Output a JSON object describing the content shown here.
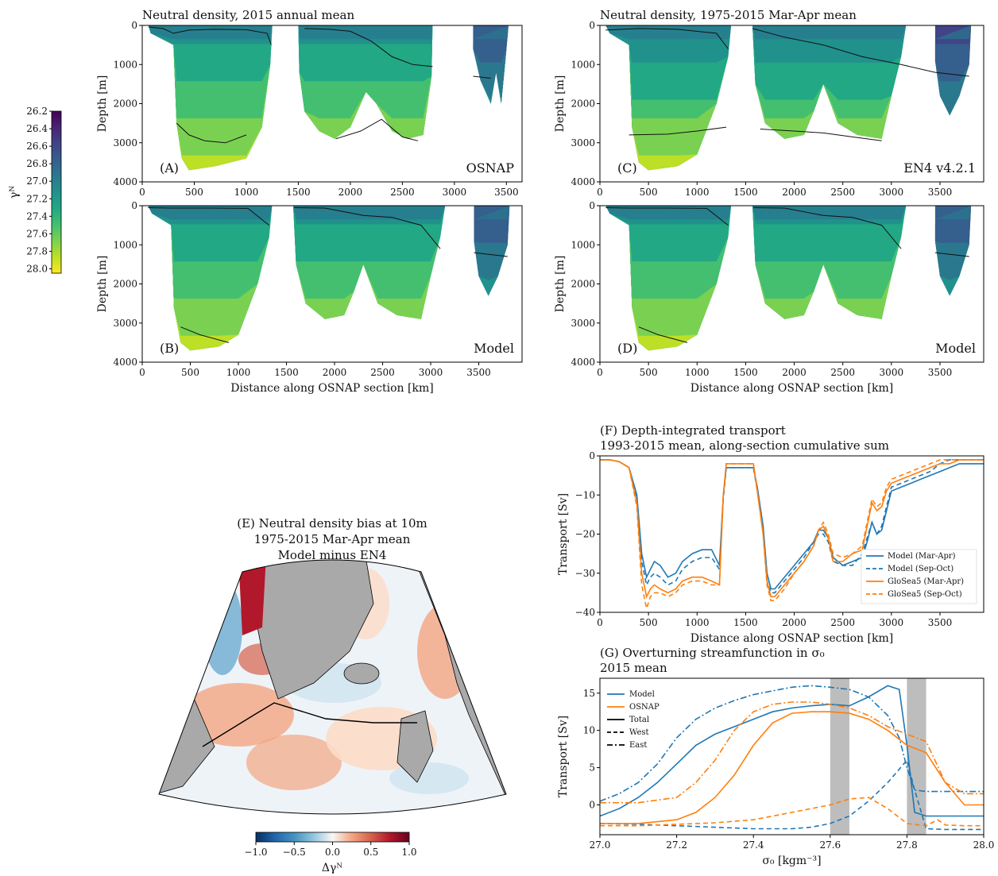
{
  "colors": {
    "model": "#1f77b4",
    "gloseas5": "#ff7f0e",
    "osnap_g": "#ff7f0e",
    "land": "#a9a9a9",
    "shade": "#bdbdbd"
  },
  "colorbar_density": {
    "label": "γᴺ",
    "ticks": [
      "26.2",
      "26.4",
      "26.6",
      "26.8",
      "27.0",
      "27.2",
      "27.4",
      "27.6",
      "27.8",
      "28.0"
    ],
    "range": [
      26.2,
      28.05
    ],
    "colormap": "viridis-reversed"
  },
  "panels": {
    "A": {
      "title": "Neutral density, 2015 annual mean",
      "label": "(A)",
      "source": "OSNAP"
    },
    "B": {
      "label": "(B)",
      "source": "Model"
    },
    "C": {
      "title": "Neutral density, 1975-2015 Mar-Apr mean",
      "label": "(C)",
      "source": "EN4 v4.2.1"
    },
    "D": {
      "label": "(D)",
      "source": "Model"
    },
    "E": {
      "title1": "(E) Neutral density bias at 10m",
      "title2": "1975-2015 Mar-Apr mean",
      "title3": "Model minus EN4",
      "cbar_label": "Δγᴺ",
      "cbar_ticks": [
        "−1.0",
        "−0.5",
        "0.0",
        "0.5",
        "1.0"
      ],
      "cbar_range": [
        -1.0,
        1.0
      ],
      "colormap": "RdBu-reversed"
    },
    "F": {
      "title1": "(F) Depth-integrated transport",
      "title2": "1993-2015 mean, along-section cumulative sum"
    },
    "G": {
      "title1": "(G) Overturning streamfunction in σ₀",
      "title2": "2015 mean"
    }
  },
  "section_axes": {
    "ylabel": "Depth [m]",
    "xlabel": "Distance along OSNAP section [km]",
    "yticks": [
      "0",
      "1000",
      "2000",
      "3000",
      "4000"
    ],
    "xticks_A": [
      "0",
      "500",
      "1000",
      "1500",
      "2000",
      "2500",
      "3000",
      "3500"
    ],
    "xticks_CD": [
      "0",
      "500",
      "1000",
      "1500",
      "2000",
      "2500",
      "3000",
      "3500"
    ],
    "xticks_B": [
      "0",
      "500",
      "1000",
      "1500",
      "2000",
      "2500",
      "3000",
      "3500"
    ],
    "ylim": [
      4000,
      0
    ],
    "xlim_A": [
      0,
      3650
    ],
    "xlim_BCD": [
      0,
      3950
    ]
  },
  "chart_data": [
    {
      "type": "line",
      "panel": "F",
      "xlabel": "Distance along OSNAP section [km]",
      "ylabel": "Transport [Sv]",
      "xlim": [
        0,
        3950
      ],
      "ylim": [
        -40,
        0
      ],
      "xticks": [
        "0",
        "500",
        "1000",
        "1500",
        "2000",
        "2500",
        "3000",
        "3500"
      ],
      "yticks": [
        "0",
        "−10",
        "−20",
        "−30",
        "−40"
      ],
      "legend_position": "lower-right",
      "series": [
        {
          "name": "Model (Mar-Apr)",
          "color": "#1f77b4",
          "dash": "solid",
          "x": [
            0,
            100,
            200,
            300,
            380,
            430,
            480,
            520,
            560,
            620,
            700,
            780,
            850,
            950,
            1050,
            1150,
            1230,
            1270,
            1300,
            1400,
            1500,
            1580,
            1620,
            1680,
            1720,
            1760,
            1800,
            1900,
            2000,
            2100,
            2200,
            2250,
            2300,
            2350,
            2400,
            2500,
            2600,
            2700,
            2750,
            2800,
            2850,
            2900,
            2950,
            3000,
            3100,
            3200,
            3300,
            3400,
            3500,
            3600,
            3700,
            3800,
            3950
          ],
          "y": [
            -1,
            -1,
            -1.5,
            -3,
            -10,
            -25,
            -31,
            -29,
            -27,
            -28,
            -31,
            -30,
            -27,
            -25,
            -24,
            -24,
            -28,
            -10,
            -3,
            -3,
            -3,
            -3,
            -8,
            -18,
            -30,
            -34,
            -34,
            -31,
            -28,
            -25,
            -22,
            -19,
            -19,
            -21,
            -26,
            -28,
            -27,
            -26,
            -22,
            -17,
            -20,
            -19,
            -14,
            -9,
            -8,
            -7,
            -6,
            -5,
            -4,
            -3,
            -2,
            -2,
            -2
          ]
        },
        {
          "name": "Model (Sep-Oct)",
          "color": "#1f77b4",
          "dash": "dashed",
          "x": [
            0,
            100,
            200,
            300,
            380,
            430,
            480,
            520,
            560,
            620,
            700,
            780,
            850,
            950,
            1050,
            1150,
            1230,
            1270,
            1300,
            1400,
            1500,
            1580,
            1620,
            1680,
            1720,
            1760,
            1800,
            1900,
            2000,
            2100,
            2200,
            2250,
            2300,
            2350,
            2400,
            2500,
            2600,
            2700,
            2750,
            2800,
            2850,
            2900,
            2950,
            3000,
            3100,
            3200,
            3300,
            3400,
            3500,
            3600,
            3700,
            3800,
            3950
          ],
          "y": [
            -1,
            -1,
            -1.5,
            -3,
            -11,
            -27,
            -33,
            -31,
            -30,
            -31,
            -33,
            -32,
            -29,
            -27,
            -26,
            -26,
            -29,
            -11,
            -3,
            -3,
            -3,
            -3,
            -9,
            -19,
            -32,
            -35,
            -35,
            -32,
            -29,
            -26,
            -22,
            -20,
            -20,
            -22,
            -27,
            -28,
            -28,
            -25,
            -21,
            -17,
            -20,
            -18,
            -13,
            -8,
            -7,
            -6,
            -5,
            -4,
            -2,
            -1,
            -1,
            -1,
            -1
          ]
        },
        {
          "name": "GloSea5 (Mar-Apr)",
          "color": "#ff7f0e",
          "dash": "solid",
          "x": [
            0,
            100,
            200,
            300,
            380,
            430,
            480,
            520,
            560,
            620,
            700,
            780,
            850,
            950,
            1050,
            1150,
            1230,
            1270,
            1300,
            1400,
            1500,
            1580,
            1620,
            1680,
            1720,
            1760,
            1800,
            1900,
            2000,
            2100,
            2200,
            2250,
            2300,
            2350,
            2400,
            2500,
            2600,
            2700,
            2750,
            2800,
            2850,
            2900,
            2950,
            3000,
            3100,
            3200,
            3300,
            3400,
            3500,
            3600,
            3700,
            3800,
            3950
          ],
          "y": [
            -1,
            -1,
            -1.5,
            -3,
            -12,
            -30,
            -36,
            -34,
            -33,
            -34,
            -35,
            -34,
            -32,
            -31,
            -31,
            -32,
            -33,
            -10,
            -2,
            -2,
            -2,
            -2,
            -9,
            -20,
            -32,
            -36,
            -36,
            -33,
            -30,
            -27,
            -23,
            -19,
            -18,
            -21,
            -27,
            -27,
            -25,
            -24,
            -18,
            -12,
            -14,
            -13,
            -9,
            -7,
            -6,
            -5,
            -4,
            -3,
            -2,
            -2,
            -1,
            -1,
            -1
          ]
        },
        {
          "name": "GloSea5 (Sep-Oct)",
          "color": "#ff7f0e",
          "dash": "dashed",
          "x": [
            0,
            100,
            200,
            300,
            380,
            430,
            480,
            520,
            560,
            620,
            700,
            780,
            850,
            950,
            1050,
            1150,
            1230,
            1270,
            1300,
            1400,
            1500,
            1580,
            1620,
            1680,
            1720,
            1760,
            1800,
            1900,
            2000,
            2100,
            2200,
            2250,
            2300,
            2350,
            2400,
            2500,
            2600,
            2700,
            2750,
            2800,
            2850,
            2900,
            2950,
            3000,
            3100,
            3200,
            3300,
            3400,
            3500,
            3600,
            3700,
            3800,
            3950
          ],
          "y": [
            -1,
            -1,
            -1.5,
            -3,
            -13,
            -33,
            -39,
            -36,
            -35,
            -35,
            -36,
            -35,
            -33,
            -32,
            -32,
            -33,
            -33,
            -10,
            -2,
            -2,
            -2,
            -2,
            -9,
            -20,
            -33,
            -37,
            -37,
            -34,
            -30,
            -27,
            -23,
            -19,
            -17,
            -20,
            -25,
            -26,
            -25,
            -23,
            -17,
            -11,
            -13,
            -12,
            -8,
            -6,
            -5,
            -4,
            -3,
            -2,
            -1,
            -1,
            -1,
            -1,
            -1
          ]
        }
      ]
    },
    {
      "type": "line",
      "panel": "G",
      "xlabel": "σ₀ [kgm⁻³]",
      "ylabel": "Transport [Sv]",
      "xlim": [
        27.0,
        28.0
      ],
      "ylim": [
        -4,
        17
      ],
      "xticks": [
        "27.0",
        "27.2",
        "27.4",
        "27.6",
        "27.8",
        "28.0"
      ],
      "yticks": [
        "15",
        "10",
        "5",
        "0"
      ],
      "shaded_bands": [
        [
          27.6,
          27.65
        ],
        [
          27.8,
          27.85
        ]
      ],
      "legend_position": "upper-left",
      "legend": [
        {
          "label": "Model",
          "color": "#1f77b4",
          "dash": "solid"
        },
        {
          "label": "OSNAP",
          "color": "#ff7f0e",
          "dash": "solid"
        },
        {
          "label": "Total",
          "color": "#000000",
          "dash": "solid"
        },
        {
          "label": "West",
          "color": "#000000",
          "dash": "dashed"
        },
        {
          "label": "East",
          "color": "#000000",
          "dash": "dashdot"
        }
      ],
      "series": [
        {
          "name": "Model Total",
          "color": "#1f77b4",
          "dash": "solid",
          "x": [
            27.0,
            27.05,
            27.1,
            27.15,
            27.2,
            27.25,
            27.3,
            27.35,
            27.4,
            27.45,
            27.5,
            27.55,
            27.6,
            27.65,
            27.7,
            27.75,
            27.78,
            27.8,
            27.82,
            27.85,
            27.9,
            27.95,
            28.0
          ],
          "y": [
            -1.5,
            -0.5,
            1,
            3,
            5.5,
            8,
            9.5,
            10.5,
            11.5,
            12.5,
            13,
            13.3,
            13.5,
            13.3,
            14.5,
            16,
            15.5,
            8,
            -1,
            -1.5,
            -1.5,
            -1.5,
            -1.5
          ]
        },
        {
          "name": "Model West",
          "color": "#1f77b4",
          "dash": "dashed",
          "x": [
            27.0,
            27.1,
            27.2,
            27.3,
            27.4,
            27.5,
            27.55,
            27.6,
            27.65,
            27.7,
            27.75,
            27.8,
            27.82,
            27.85,
            27.9,
            28.0
          ],
          "y": [
            -2.5,
            -2.6,
            -2.8,
            -3,
            -3.2,
            -3.2,
            -3,
            -2.5,
            -1.5,
            0.5,
            3,
            6,
            2,
            -3.2,
            -3.3,
            -3.3
          ]
        },
        {
          "name": "Model East",
          "color": "#1f77b4",
          "dash": "dashdot",
          "x": [
            27.0,
            27.05,
            27.1,
            27.15,
            27.2,
            27.25,
            27.3,
            27.35,
            27.4,
            27.45,
            27.5,
            27.55,
            27.6,
            27.65,
            27.7,
            27.75,
            27.78,
            27.8,
            27.82,
            27.85,
            27.9,
            28.0
          ],
          "y": [
            0.5,
            1.5,
            3,
            5.5,
            9,
            11.5,
            13,
            14,
            14.8,
            15.3,
            15.8,
            16,
            15.8,
            15.5,
            14.5,
            12,
            9,
            5,
            2,
            1.8,
            1.8,
            1.8
          ]
        },
        {
          "name": "OSNAP Total",
          "color": "#ff7f0e",
          "dash": "solid",
          "x": [
            27.0,
            27.1,
            27.2,
            27.25,
            27.3,
            27.35,
            27.4,
            27.45,
            27.5,
            27.55,
            27.6,
            27.65,
            27.7,
            27.75,
            27.8,
            27.85,
            27.9,
            27.95,
            28.0
          ],
          "y": [
            -2.5,
            -2.5,
            -2,
            -1,
            1,
            4,
            8,
            11,
            12.3,
            12.5,
            12.5,
            12.3,
            11.5,
            10,
            8,
            7,
            3,
            0,
            0
          ]
        },
        {
          "name": "OSNAP West",
          "color": "#ff7f0e",
          "dash": "dashed",
          "x": [
            27.0,
            27.1,
            27.2,
            27.3,
            27.4,
            27.5,
            27.6,
            27.65,
            27.7,
            27.75,
            27.8,
            27.85,
            27.88,
            27.9,
            27.95,
            28.0
          ],
          "y": [
            -2.8,
            -2.8,
            -2.6,
            -2.4,
            -2,
            -1,
            0,
            0.8,
            1,
            -0.5,
            -2.5,
            -2.8,
            -2,
            -2.7,
            -2.8,
            -2.8
          ]
        },
        {
          "name": "OSNAP East",
          "color": "#ff7f0e",
          "dash": "dashdot",
          "x": [
            27.0,
            27.1,
            27.2,
            27.25,
            27.3,
            27.35,
            27.4,
            27.45,
            27.5,
            27.55,
            27.6,
            27.65,
            27.7,
            27.75,
            27.8,
            27.85,
            27.9,
            27.95,
            28.0
          ],
          "y": [
            0.3,
            0.3,
            1,
            3,
            6,
            10,
            12.5,
            13.5,
            13.8,
            13.8,
            13.5,
            13,
            12,
            10.5,
            9.5,
            8.5,
            3,
            1.5,
            1.5
          ]
        }
      ]
    }
  ]
}
